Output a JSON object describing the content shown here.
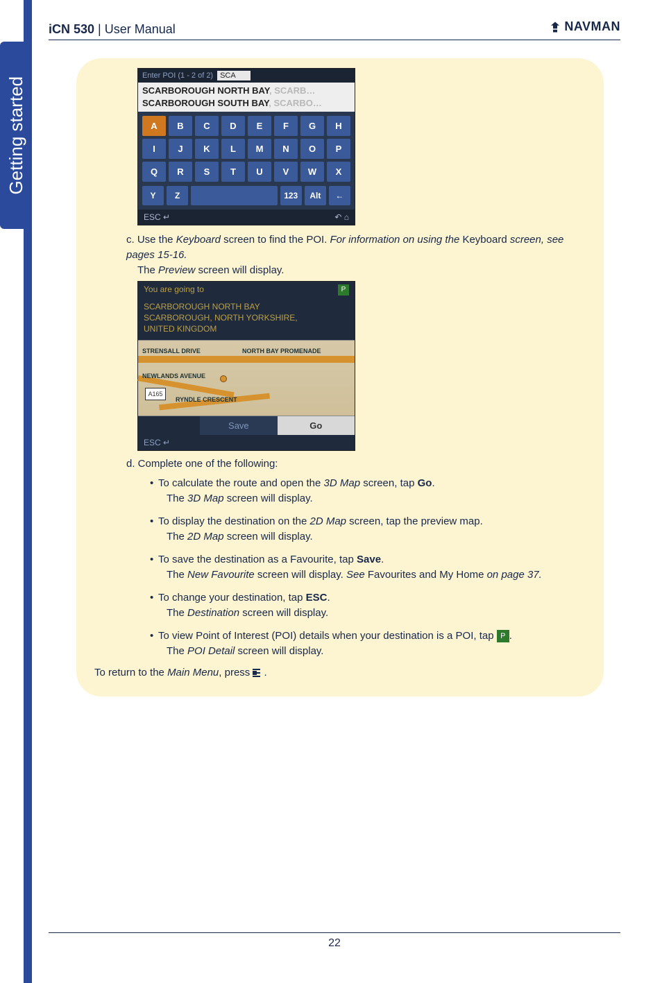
{
  "header": {
    "product": "iCN 530",
    "sep": " | ",
    "title_rest": "User Manual",
    "brand": "NAVMAN"
  },
  "side_tab": "Getting started",
  "kb": {
    "topline": "Enter POI (1 - 2 of 2)",
    "input_value": "SCA",
    "sugg1_a": "SCARBOROUGH NORTH BAY",
    "sugg1_b": ", SCARB…",
    "sugg2_a": "SCARBOROUGH SOUTH BAY",
    "sugg2_b": ", SCARBO…",
    "rows": [
      [
        "A",
        "B",
        "C",
        "D",
        "E",
        "F",
        "G",
        "H"
      ],
      [
        "I",
        "J",
        "K",
        "L",
        "M",
        "N",
        "O",
        "P"
      ],
      [
        "Q",
        "R",
        "S",
        "T",
        "U",
        "V",
        "W",
        "X"
      ]
    ],
    "hl_keys": [
      "A"
    ],
    "bottom": [
      "Y",
      "Z",
      "",
      "123",
      "Alt",
      "←"
    ],
    "footer_left": "ESC ↵",
    "footer_right": "↶  ⌂"
  },
  "step_c": {
    "prefix": "c. Use the ",
    "kbd": "Keyboard",
    "mid": " screen to find the POI. ",
    "info_i": "For information on using the ",
    "info_b": "Keyboard",
    "info_tail": " screen, see pages 15-16.",
    "line2_a": "The ",
    "line2_i": "Preview",
    "line2_b": " screen will display."
  },
  "preview": {
    "top": "You are going to",
    "addr1": "SCARBOROUGH NORTH BAY",
    "addr2": "SCARBOROUGH, NORTH YORKSHIRE,",
    "addr3": "UNITED KINGDOM",
    "road1": "STRENSALL DRIVE",
    "road2": "NORTH BAY PROMENADE",
    "road3": "NEWLANDS AVENUE",
    "road4": "RYNDLE CRESCENT",
    "shield": "A165",
    "save": "Save",
    "go": "Go",
    "footer": "ESC ↵"
  },
  "step_d": "d. Complete one of the following:",
  "bullets": [
    {
      "t": [
        "To calculate the route and open the ",
        {
          "i": "3D Map"
        },
        " screen, tap ",
        {
          "b": "Go"
        },
        "."
      ],
      "s": [
        "The ",
        {
          "i": "3D Map"
        },
        " screen will display."
      ]
    },
    {
      "t": [
        "To display the destination on the ",
        {
          "i": "2D Map"
        },
        " screen, tap the preview map."
      ],
      "s": [
        "The ",
        {
          "i": "2D Map"
        },
        " screen will display."
      ]
    },
    {
      "t": [
        "To save the destination as a Favourite, tap ",
        {
          "b": "Save"
        },
        "."
      ],
      "s": [
        "The ",
        {
          "i": "New Favourite"
        },
        " screen will display. ",
        {
          "i": "See "
        },
        "Favourites and My Home ",
        {
          "i": "on page 37."
        }
      ]
    },
    {
      "t": [
        "To change your destination, tap ",
        {
          "b": "ESC"
        },
        "."
      ],
      "s": [
        "The ",
        {
          "i": "Destination"
        },
        " screen will display."
      ]
    },
    {
      "t": [
        "To view Point of Interest (POI) details when your destination is a POI, tap ",
        {
          "icon": "poi"
        },
        "."
      ],
      "s": [
        "The ",
        {
          "i": "POI Detail"
        },
        " screen will display."
      ]
    }
  ],
  "return_line": {
    "a": "To return to the ",
    "i": "Main Menu",
    "b": ", press ",
    "tail": "."
  },
  "page_number": "22",
  "colors": {
    "panel_bg": "#fdf4d1",
    "brand": "#18284a",
    "stripe": "#2b4a9b"
  }
}
